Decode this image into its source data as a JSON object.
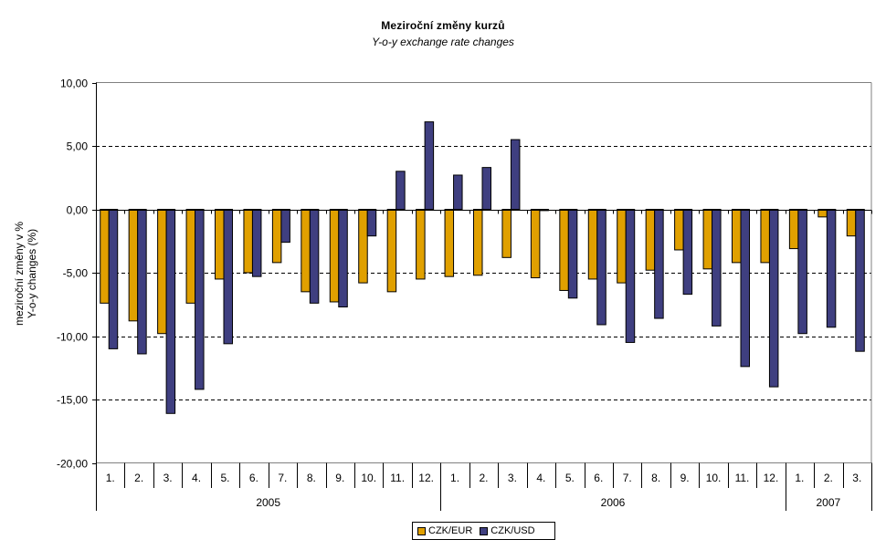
{
  "chart_data": {
    "type": "bar",
    "title": "Meziroční změny kurzů",
    "subtitle": "Y-o-y exchange rate changes",
    "ylabel": [
      "meziroční změny v %",
      "Y-o-y changes (%)"
    ],
    "xlabel": "",
    "ylim": [
      -20,
      10
    ],
    "yticks": [
      10,
      5,
      0,
      -5,
      -10,
      -15,
      -20
    ],
    "ytick_labels": [
      "10,00",
      "5,00",
      "0,00",
      "-5,00",
      "-10,00",
      "-15,00",
      "-20,00"
    ],
    "grid": "horizontal dashed",
    "legend_position": "bottom",
    "categories": [
      "1.",
      "2.",
      "3.",
      "4.",
      "5.",
      "6.",
      "7.",
      "8.",
      "9.",
      "10.",
      "11.",
      "12.",
      "1.",
      "2.",
      "3.",
      "4.",
      "5.",
      "6.",
      "7.",
      "8.",
      "9.",
      "10.",
      "11.",
      "12.",
      "1.",
      "2.",
      "3."
    ],
    "groups": [
      {
        "label": "2005",
        "count": 12
      },
      {
        "label": "2006",
        "count": 12
      },
      {
        "label": "2007",
        "count": 3
      }
    ],
    "series": [
      {
        "name": "CZK/EUR",
        "color": "#E0A000",
        "values": [
          -7.4,
          -8.8,
          -9.8,
          -7.4,
          -5.5,
          -5.0,
          -4.2,
          -6.5,
          -7.3,
          -5.8,
          -6.5,
          -5.5,
          -5.3,
          -5.2,
          -3.8,
          -5.4,
          -6.4,
          -5.5,
          -5.8,
          -4.8,
          -3.2,
          -4.7,
          -4.2,
          -4.2,
          -3.1,
          -0.6,
          -2.1
        ]
      },
      {
        "name": "CZK/USD",
        "color": "#3F3F80",
        "values": [
          -11.0,
          -11.4,
          -16.1,
          -14.2,
          -10.6,
          -5.3,
          -2.6,
          -7.4,
          -7.7,
          -2.1,
          3.0,
          6.9,
          2.7,
          3.3,
          5.5,
          -0.1,
          -7.0,
          -9.1,
          -10.5,
          -8.6,
          -6.7,
          -9.2,
          -12.4,
          -14.0,
          -9.8,
          -9.3,
          -11.2
        ]
      }
    ]
  }
}
